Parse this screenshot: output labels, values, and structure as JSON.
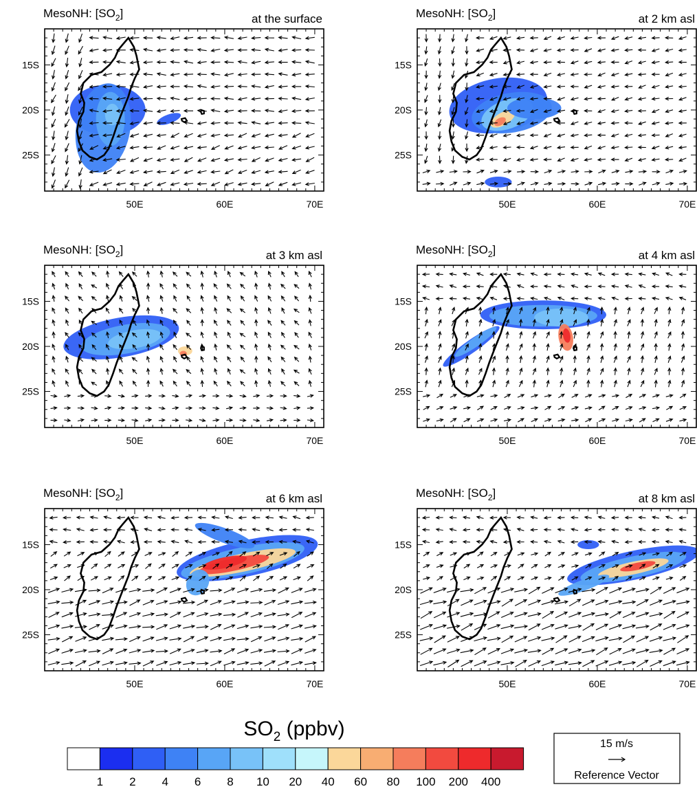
{
  "figure": {
    "colorbar_title": "SO",
    "colorbar_title_sub": "2",
    "colorbar_title_unit": " (ppbv)",
    "reference_vector": {
      "magnitude": "15 m/s",
      "label": "Reference Vector"
    }
  },
  "chart_data": [
    {
      "type": "heatmap",
      "variable": "SO2",
      "unit": "ppbv",
      "title_left": "MesoNH: [SO",
      "title_left_sub": "2",
      "title_left_end": "]",
      "title_right": "at the surface",
      "xlim": [
        40,
        71
      ],
      "ylim": [
        -29,
        -11
      ],
      "xticks": [
        50,
        60,
        70
      ],
      "xticklabels": [
        "50E",
        "60E",
        "70E"
      ],
      "yticks": [
        -15,
        -20,
        -25
      ],
      "yticklabels": [
        "15S",
        "20S",
        "25S"
      ],
      "wind": "easterly",
      "plume_max_ppbv": 20
    },
    {
      "type": "heatmap",
      "variable": "SO2",
      "unit": "ppbv",
      "title_left": "MesoNH: [SO",
      "title_left_sub": "2",
      "title_left_end": "]",
      "title_right": "at 2 km asl",
      "xlim": [
        40,
        71
      ],
      "ylim": [
        -29,
        -11
      ],
      "xticks": [
        50,
        60,
        70
      ],
      "xticklabels": [
        "50E",
        "60E",
        "70E"
      ],
      "yticks": [
        -15,
        -20,
        -25
      ],
      "yticklabels": [
        "15S",
        "20S",
        "25S"
      ],
      "wind": "easterly",
      "plume_max_ppbv": 100
    },
    {
      "type": "heatmap",
      "variable": "SO2",
      "unit": "ppbv",
      "title_left": "MesoNH: [SO",
      "title_left_sub": "2",
      "title_left_end": "]",
      "title_right": "at 3 km asl",
      "xlim": [
        40,
        71
      ],
      "ylim": [
        -29,
        -11
      ],
      "xticks": [
        50,
        60,
        70
      ],
      "xticklabels": [
        "50E",
        "60E",
        "70E"
      ],
      "yticks": [
        -15,
        -20,
        -25
      ],
      "yticklabels": [
        "15S",
        "20S",
        "25S"
      ],
      "wind": "weak",
      "plume_max_ppbv": 100
    },
    {
      "type": "heatmap",
      "variable": "SO2",
      "unit": "ppbv",
      "title_left": "MesoNH: [SO",
      "title_left_sub": "2",
      "title_left_end": "]",
      "title_right": "at 4 km asl",
      "xlim": [
        40,
        71
      ],
      "ylim": [
        -29,
        -11
      ],
      "xticks": [
        50,
        60,
        70
      ],
      "xticklabels": [
        "50E",
        "60E",
        "70E"
      ],
      "yticks": [
        -15,
        -20,
        -25
      ],
      "yticklabels": [
        "15S",
        "20S",
        "25S"
      ],
      "wind": "northward",
      "plume_max_ppbv": 200
    },
    {
      "type": "heatmap",
      "variable": "SO2",
      "unit": "ppbv",
      "title_left": "MesoNH: [SO",
      "title_left_sub": "2",
      "title_left_end": "]",
      "title_right": "at 6 km asl",
      "xlim": [
        40,
        71
      ],
      "ylim": [
        -29,
        -11
      ],
      "xticks": [
        50,
        60,
        70
      ],
      "xticklabels": [
        "50E",
        "60E",
        "70E"
      ],
      "yticks": [
        -15,
        -20,
        -25
      ],
      "yticklabels": [
        "15S",
        "20S",
        "25S"
      ],
      "wind": "westerly-northeastward",
      "plume_max_ppbv": 200
    },
    {
      "type": "heatmap",
      "variable": "SO2",
      "unit": "ppbv",
      "title_left": "MesoNH: [SO",
      "title_left_sub": "2",
      "title_left_end": "]",
      "title_right": "at 8 km asl",
      "xlim": [
        40,
        71
      ],
      "ylim": [
        -29,
        -11
      ],
      "xticks": [
        50,
        60,
        70
      ],
      "xticklabels": [
        "50E",
        "60E",
        "70E"
      ],
      "yticks": [
        -15,
        -20,
        -25
      ],
      "yticklabels": [
        "15S",
        "20S",
        "25S"
      ],
      "wind": "westerly-northeastward",
      "plume_max_ppbv": 100
    }
  ],
  "colorbar": {
    "labels": [
      "1",
      "2",
      "4",
      "6",
      "8",
      "10",
      "20",
      "40",
      "60",
      "80",
      "100",
      "200",
      "400"
    ],
    "colors": [
      "#ffffff",
      "#1b2ef0",
      "#2f5ff5",
      "#3e82f5",
      "#58a5f6",
      "#78c2f8",
      "#9fe0fb",
      "#c6f6fb",
      "#fbd79a",
      "#f8ad72",
      "#f57d5c",
      "#f24a3f",
      "#ee2a2c",
      "#c81a2e"
    ]
  },
  "coastlines": {
    "madagascar": [
      [
        49.3,
        -12.0
      ],
      [
        49.9,
        -13.0
      ],
      [
        50.2,
        -14.0
      ],
      [
        50.5,
        -15.5
      ],
      [
        50.0,
        -16.5
      ],
      [
        49.6,
        -17.5
      ],
      [
        49.3,
        -18.5
      ],
      [
        48.9,
        -19.5
      ],
      [
        48.5,
        -20.5
      ],
      [
        48.0,
        -21.8
      ],
      [
        47.6,
        -23.0
      ],
      [
        47.1,
        -24.3
      ],
      [
        46.6,
        -25.0
      ],
      [
        45.8,
        -25.5
      ],
      [
        45.0,
        -25.2
      ],
      [
        44.2,
        -24.5
      ],
      [
        43.8,
        -23.5
      ],
      [
        43.6,
        -22.3
      ],
      [
        43.8,
        -21.2
      ],
      [
        44.3,
        -20.2
      ],
      [
        44.4,
        -19.2
      ],
      [
        44.0,
        -18.2
      ],
      [
        44.3,
        -17.0
      ],
      [
        45.2,
        -16.1
      ],
      [
        46.3,
        -15.8
      ],
      [
        47.2,
        -15.0
      ],
      [
        47.8,
        -14.2
      ],
      [
        48.2,
        -13.3
      ],
      [
        48.7,
        -12.7
      ],
      [
        49.3,
        -12.0
      ]
    ],
    "reunion": [
      [
        55.2,
        -21.0
      ],
      [
        55.6,
        -20.9
      ],
      [
        55.8,
        -21.2
      ],
      [
        55.5,
        -21.35
      ],
      [
        55.25,
        -21.2
      ],
      [
        55.2,
        -21.0
      ]
    ],
    "mauritius": [
      [
        57.4,
        -20.0
      ],
      [
        57.7,
        -20.1
      ],
      [
        57.7,
        -20.4
      ],
      [
        57.45,
        -20.45
      ],
      [
        57.35,
        -20.2
      ],
      [
        57.4,
        -20.0
      ]
    ]
  }
}
